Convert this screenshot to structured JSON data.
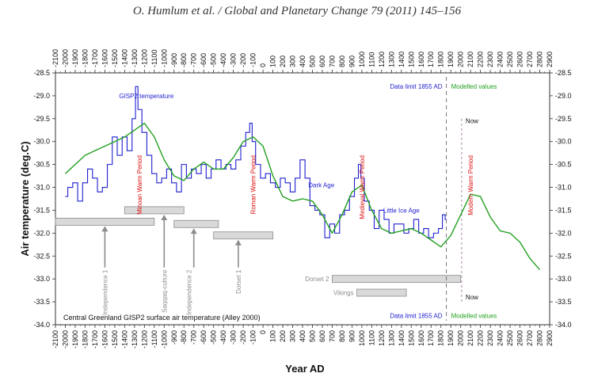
{
  "header": {
    "citation": "O. Humlum et al. / Global and Planetary Change 79 (2011) 145–156"
  },
  "chart_data": {
    "type": "line",
    "title": "Central Greenland GISP2 surface air temperature (Alley 2000)",
    "xlabel": "Year AD",
    "ylabel": "Air temperature (deg.C)",
    "xlim": [
      -2100,
      2900
    ],
    "ylim": [
      -34.0,
      -28.5
    ],
    "x_ticks": [
      -2100,
      -2000,
      -1900,
      -1800,
      -1700,
      -1600,
      -1500,
      -1400,
      -1300,
      -1200,
      -1100,
      -1000,
      -900,
      -800,
      -700,
      -600,
      -500,
      -400,
      -300,
      -200,
      -100,
      0,
      100,
      200,
      300,
      400,
      500,
      600,
      700,
      800,
      900,
      1000,
      1100,
      1200,
      1300,
      1400,
      1500,
      1600,
      1700,
      1800,
      1900,
      2000,
      2100,
      2200,
      2300,
      2400,
      2500,
      2600,
      2700,
      2800,
      2900
    ],
    "y_ticks": [
      -28.5,
      -29.0,
      -29.5,
      -30.0,
      -30.5,
      -31.0,
      -31.5,
      -32.0,
      -32.5,
      -33.0,
      -33.5,
      -34.0
    ],
    "series": [
      {
        "name": "GISP2 temperature",
        "color": "#1f1fd0",
        "x": [
          -2000,
          -1950,
          -1900,
          -1850,
          -1800,
          -1750,
          -1700,
          -1650,
          -1600,
          -1550,
          -1500,
          -1450,
          -1400,
          -1350,
          -1300,
          -1280,
          -1250,
          -1200,
          -1150,
          -1100,
          -1050,
          -1000,
          -950,
          -900,
          -850,
          -800,
          -750,
          -700,
          -650,
          -600,
          -550,
          -500,
          -450,
          -400,
          -350,
          -300,
          -250,
          -200,
          -150,
          -120,
          -100,
          -50,
          0,
          50,
          100,
          150,
          200,
          250,
          300,
          350,
          400,
          450,
          500,
          550,
          600,
          650,
          700,
          750,
          800,
          850,
          900,
          950,
          980,
          1000,
          1050,
          1100,
          1150,
          1200,
          1250,
          1300,
          1350,
          1400,
          1450,
          1500,
          1550,
          1600,
          1650,
          1700,
          1750,
          1800,
          1830,
          1855
        ],
        "y": [
          -31.2,
          -31.0,
          -30.9,
          -31.3,
          -30.9,
          -30.6,
          -30.8,
          -31.1,
          -31.0,
          -30.5,
          -29.9,
          -30.3,
          -29.9,
          -30.2,
          -29.5,
          -28.8,
          -29.3,
          -29.8,
          -30.3,
          -30.7,
          -30.9,
          -30.8,
          -30.6,
          -30.9,
          -31.1,
          -30.5,
          -30.8,
          -30.6,
          -30.7,
          -30.5,
          -30.8,
          -30.6,
          -30.4,
          -30.6,
          -30.5,
          -30.6,
          -30.4,
          -30.1,
          -29.8,
          -29.6,
          -30.0,
          -30.5,
          -30.8,
          -30.7,
          -30.9,
          -31.0,
          -30.8,
          -30.9,
          -31.1,
          -30.8,
          -30.4,
          -30.8,
          -31.4,
          -31.5,
          -31.6,
          -32.1,
          -31.8,
          -32.0,
          -31.6,
          -31.5,
          -31.2,
          -30.8,
          -30.5,
          -30.8,
          -31.3,
          -31.5,
          -31.9,
          -31.5,
          -31.7,
          -32.0,
          -31.8,
          -31.8,
          -32.0,
          -31.9,
          -31.7,
          -32.0,
          -31.9,
          -32.1,
          -32.0,
          -31.9,
          -31.6,
          -31.7
        ]
      },
      {
        "name": "Modelled values",
        "color": "#22a01e",
        "x": [
          -2000,
          -1900,
          -1800,
          -1700,
          -1600,
          -1500,
          -1400,
          -1300,
          -1200,
          -1100,
          -1000,
          -900,
          -800,
          -700,
          -600,
          -500,
          -400,
          -300,
          -200,
          -100,
          0,
          100,
          200,
          300,
          400,
          500,
          600,
          700,
          800,
          900,
          1000,
          1100,
          1200,
          1300,
          1400,
          1500,
          1600,
          1700,
          1800,
          1900,
          2000,
          2100,
          2200,
          2300,
          2400,
          2500,
          2600,
          2700,
          2800
        ],
        "y": [
          -30.7,
          -30.5,
          -30.3,
          -30.2,
          -30.1,
          -30.0,
          -29.9,
          -29.75,
          -29.6,
          -29.9,
          -30.4,
          -30.75,
          -30.85,
          -30.6,
          -30.45,
          -30.6,
          -30.6,
          -30.35,
          -30.0,
          -29.9,
          -30.1,
          -30.75,
          -31.2,
          -31.3,
          -31.25,
          -31.3,
          -31.6,
          -32.0,
          -31.6,
          -31.1,
          -30.95,
          -31.5,
          -31.9,
          -32.0,
          -31.95,
          -31.9,
          -32.0,
          -32.15,
          -32.3,
          -32.05,
          -31.6,
          -31.15,
          -31.2,
          -31.65,
          -31.95,
          -32.0,
          -32.2,
          -32.55,
          -32.8
        ]
      }
    ],
    "periods": [
      {
        "label": "Minoan Warm Period",
        "x": -1250
      },
      {
        "label": "Roman Warm Period",
        "x": -100
      },
      {
        "label": "Medieval Warm Period",
        "x": 1000
      },
      {
        "label": "Modern Warm Period",
        "x": 2100
      }
    ],
    "eras": [
      {
        "label": "Dark Age",
        "x": 590,
        "y": -31.0
      },
      {
        "label": "Little Ice Age",
        "x": 1400,
        "y": -31.55
      },
      {
        "label": "GISP2 temperature",
        "x": -1180,
        "y": -29.05
      }
    ],
    "occupations": [
      {
        "label": "Independence 1",
        "start": -2100,
        "end": -1100,
        "y": -31.75,
        "arrow_x": -1600,
        "text_x": -1600
      },
      {
        "label": "Saqqaq-culture",
        "start": -1400,
        "end": -800,
        "y": -31.5,
        "arrow_x": -1000,
        "text_x": -1000
      },
      {
        "label": "Independence 2",
        "start": -900,
        "end": -450,
        "y": -31.8,
        "arrow_x": -700,
        "text_x": -750
      },
      {
        "label": "Dorset 1",
        "start": -500,
        "end": 100,
        "y": -32.05,
        "arrow_x": -250,
        "text_x": -250
      },
      {
        "label": "Dorset 2",
        "start": 700,
        "end": 2000,
        "y": -33.0,
        "text_side": "left"
      },
      {
        "label": "Vikings",
        "start": 950,
        "end": 1450,
        "y": -33.3,
        "text_side": "left"
      }
    ],
    "data_limit": {
      "x": 1855,
      "label": "Data limit 1855 AD",
      "modelled_label": "Modelled values"
    },
    "now": {
      "x": 2010,
      "label": "Now"
    }
  }
}
